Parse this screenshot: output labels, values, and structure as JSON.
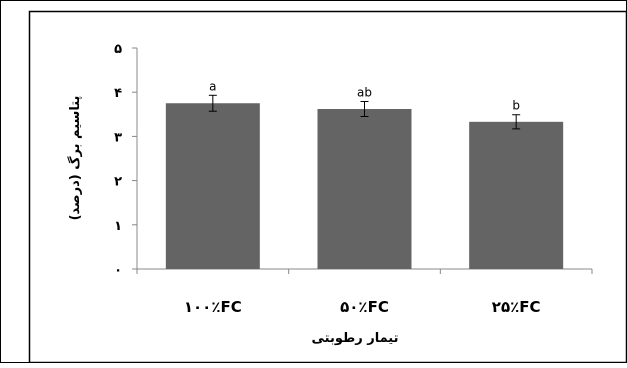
{
  "chart_data": {
    "type": "bar",
    "title": "",
    "xlabel": "تیمار رطوبتی",
    "ylabel": "پتاسیم برگ (درصد)",
    "categories": [
      "۱۰۰٪FC",
      "۵۰٪FC",
      "۲۵٪FC"
    ],
    "values": [
      3.75,
      3.62,
      3.33
    ],
    "errors": [
      0.18,
      0.17,
      0.16
    ],
    "significance_labels": [
      "a",
      "ab",
      "b"
    ],
    "ylim": [
      0,
      5
    ],
    "yticks": [
      {
        "value": 0,
        "label": "٠"
      },
      {
        "value": 1,
        "label": "١"
      },
      {
        "value": 2,
        "label": "٢"
      },
      {
        "value": 3,
        "label": "٣"
      },
      {
        "value": 4,
        "label": "۴"
      },
      {
        "value": 5,
        "label": "۵"
      }
    ],
    "grid": false,
    "bar_color": "#646464"
  }
}
